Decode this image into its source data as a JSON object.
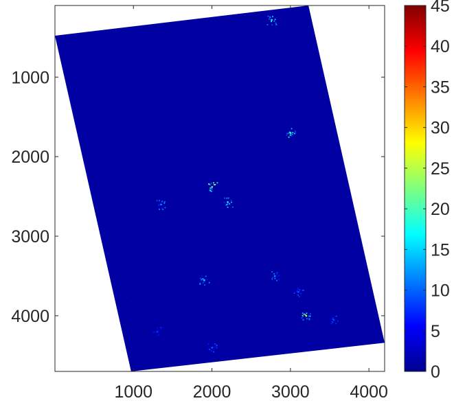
{
  "chart_data": {
    "type": "heatmap",
    "title": "",
    "xlabel": "",
    "ylabel": "",
    "xlim": [
      0,
      4200
    ],
    "ylim": [
      4700,
      100
    ],
    "y_reversed": true,
    "grid": false,
    "x_ticks": [
      {
        "value": 1000,
        "label": "1000"
      },
      {
        "value": 2000,
        "label": "2000"
      },
      {
        "value": 3000,
        "label": "3000"
      },
      {
        "value": 4000,
        "label": "4000"
      }
    ],
    "y_ticks": [
      {
        "value": 1000,
        "label": "1000"
      },
      {
        "value": 2000,
        "label": "2000"
      },
      {
        "value": 3000,
        "label": "3000"
      },
      {
        "value": 4000,
        "label": "4000"
      }
    ],
    "colorbar": {
      "colormap": "jet",
      "clim": [
        0,
        45
      ],
      "ticks": [
        {
          "value": 0,
          "label": "0"
        },
        {
          "value": 5,
          "label": "5"
        },
        {
          "value": 10,
          "label": "10"
        },
        {
          "value": 15,
          "label": "15"
        },
        {
          "value": 20,
          "label": "20"
        },
        {
          "value": 25,
          "label": "25"
        },
        {
          "value": 30,
          "label": "30"
        },
        {
          "value": 35,
          "label": "35"
        },
        {
          "value": 40,
          "label": "40"
        },
        {
          "value": 45,
          "label": "45"
        }
      ]
    },
    "footprint": [
      [
        0,
        480
      ],
      [
        3230,
        100
      ],
      [
        4200,
        4340
      ],
      [
        970,
        4700
      ]
    ],
    "background_value": 1.5,
    "hotspots": [
      {
        "x": 2760,
        "y": 280,
        "value": 18
      },
      {
        "x": 3000,
        "y": 1700,
        "value": 20
      },
      {
        "x": 2000,
        "y": 2380,
        "value": 22
      },
      {
        "x": 2200,
        "y": 2570,
        "value": 17
      },
      {
        "x": 1350,
        "y": 2600,
        "value": 12
      },
      {
        "x": 1900,
        "y": 3550,
        "value": 15
      },
      {
        "x": 2800,
        "y": 3500,
        "value": 12
      },
      {
        "x": 3100,
        "y": 3700,
        "value": 10
      },
      {
        "x": 3200,
        "y": 4000,
        "value": 25
      },
      {
        "x": 2000,
        "y": 4400,
        "value": 10
      },
      {
        "x": 1300,
        "y": 4200,
        "value": 8
      },
      {
        "x": 3550,
        "y": 4050,
        "value": 9
      }
    ]
  }
}
